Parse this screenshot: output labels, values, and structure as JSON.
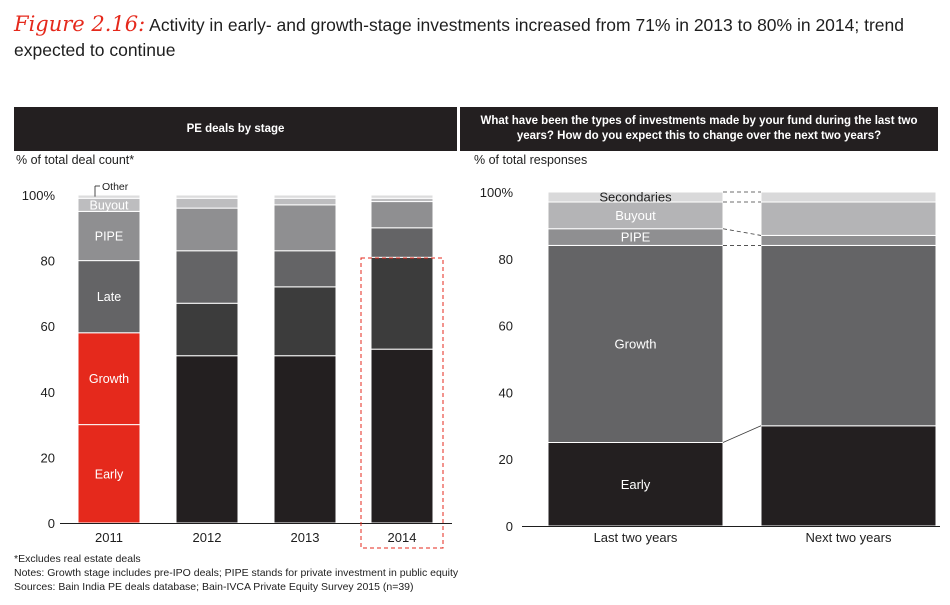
{
  "title": {
    "figure_label": "Figure 2.16:",
    "text": "Activity in early- and growth-stage investments increased from 71% in 2013 to 80% in 2014; trend expected to continue"
  },
  "left_panel": {
    "header": "PE deals by stage",
    "axis_label": "% of total deal count*"
  },
  "right_panel": {
    "header": "What have been the types of investments made by your fund during the last two years? How do you expect this to change over the next two years?",
    "axis_label": "% of total responses"
  },
  "chart_data": [
    {
      "type": "bar",
      "stacked": true,
      "title": "PE deals by stage",
      "ylabel": "% of total deal count*",
      "ylim": [
        0,
        100
      ],
      "yticks": [
        "0",
        "20",
        "40",
        "60",
        "80",
        "100%"
      ],
      "categories": [
        "2011",
        "2012",
        "2013",
        "2014"
      ],
      "highlight": "2014",
      "series": [
        {
          "name": "Early",
          "values": [
            30,
            51,
            51,
            53
          ],
          "colors": [
            "#e5291c",
            "#231f20",
            "#231f20",
            "#231f20"
          ]
        },
        {
          "name": "Growth",
          "values": [
            28,
            16,
            21,
            28
          ],
          "colors": [
            "#e5291c",
            "#3c3c3c",
            "#3c3c3c",
            "#3c3c3c"
          ]
        },
        {
          "name": "Late",
          "values": [
            22,
            16,
            11,
            9
          ],
          "colors": [
            "#646466",
            "#646466",
            "#646466",
            "#646466"
          ]
        },
        {
          "name": "PIPE",
          "values": [
            15,
            13,
            14,
            8
          ],
          "colors": [
            "#8f8f91",
            "#8f8f91",
            "#8f8f91",
            "#8f8f91"
          ]
        },
        {
          "name": "Buyout",
          "values": [
            4,
            3,
            2,
            1
          ],
          "colors": [
            "#bdbdbf",
            "#bdbdbf",
            "#bdbdbf",
            "#bdbdbf"
          ]
        },
        {
          "name": "Other",
          "values": [
            1,
            1,
            1,
            1
          ],
          "colors": [
            "#dcdcdd",
            "#dcdcdd",
            "#dcdcdd",
            "#dcdcdd"
          ]
        }
      ]
    },
    {
      "type": "bar",
      "stacked": true,
      "ylabel": "% of total responses",
      "ylim": [
        0,
        100
      ],
      "yticks": [
        "0",
        "20",
        "40",
        "60",
        "80",
        "100%"
      ],
      "categories": [
        "Last two years",
        "Next two years"
      ],
      "series": [
        {
          "name": "Early",
          "values": [
            25,
            30
          ],
          "color": "#231f20"
        },
        {
          "name": "Growth",
          "values": [
            59,
            54
          ],
          "color": "#646466"
        },
        {
          "name": "PIPE",
          "values": [
            5,
            3
          ],
          "color": "#8f8f91"
        },
        {
          "name": "Buyout",
          "values": [
            8,
            10
          ],
          "color": "#b4b4b6"
        },
        {
          "name": "Secondaries",
          "values": [
            3,
            3
          ],
          "color": "#d9d9da"
        }
      ]
    }
  ],
  "notes": [
    "*Excludes real estate deals",
    "Notes: Growth stage includes pre-IPO deals; PIPE stands for private investment in public equity",
    "Sources: Bain India PE deals database; Bain-IVCA Private Equity Survey 2015 (n=39)"
  ]
}
